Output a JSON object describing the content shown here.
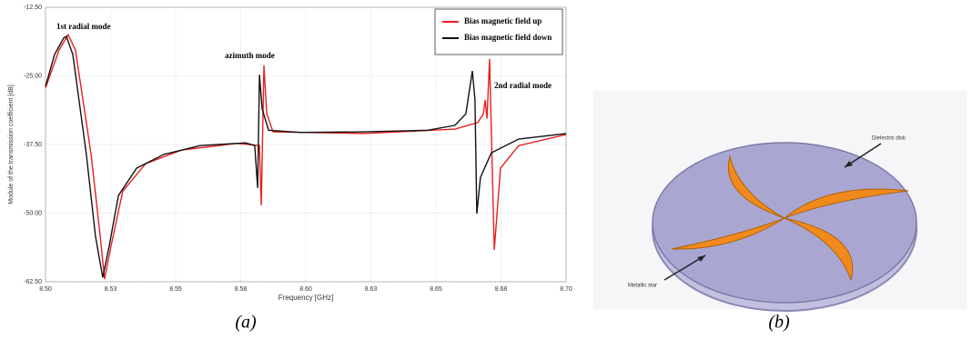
{
  "chart_data": {
    "type": "line",
    "x_label": "Frequency [GHz]",
    "y_label": "Module of the transmission coefficient [dB]",
    "annotations": [
      "1st radial mode",
      "azimuth mode",
      "2nd radial mode"
    ],
    "xlim": [
      8.5,
      8.7
    ],
    "xticks": [
      {
        "value": 8.5,
        "label": "8.50"
      },
      {
        "value": 8.525,
        "label": "8.53"
      },
      {
        "value": 8.55,
        "label": "8.55"
      },
      {
        "value": 8.575,
        "label": "8.58"
      },
      {
        "value": 8.6,
        "label": "8.60"
      },
      {
        "value": 8.625,
        "label": "8.63"
      },
      {
        "value": 8.65,
        "label": "8.65"
      },
      {
        "value": 8.675,
        "label": "8.68"
      },
      {
        "value": 8.7,
        "label": "8.70"
      }
    ],
    "ylim": [
      -62.5,
      -12.5
    ],
    "yticks": [
      {
        "value": -12.5,
        "label": "-12.50"
      },
      {
        "value": -25,
        "label": "-25.00"
      },
      {
        "value": -37.5,
        "label": "-37.50"
      },
      {
        "value": -50,
        "label": "-50.00"
      },
      {
        "value": -62.5,
        "label": "-62.50"
      }
    ],
    "grid": true,
    "legend": "upper right",
    "series": [
      {
        "name": "Bias magnetic field up",
        "color": "#e8201c",
        "x": [
          8.5,
          8.5052,
          8.5087,
          8.5115,
          8.5175,
          8.521,
          8.5227,
          8.5252,
          8.5297,
          8.5385,
          8.5524,
          8.5734,
          8.5822,
          8.5829,
          8.5839,
          8.585,
          8.5874,
          8.6224,
          8.6573,
          8.6661,
          8.6682,
          8.6689,
          8.6696,
          8.6706,
          8.6724,
          8.6748,
          8.6818,
          8.7
        ],
        "values": [
          -27.2,
          -20.3,
          -17.5,
          -20.3,
          -39.3,
          -54.2,
          -62.0,
          -55.9,
          -46.0,
          -41.0,
          -38.5,
          -37.3,
          -37.7,
          -48.6,
          -23.1,
          -31.9,
          -35.2,
          -35.5,
          -34.7,
          -33.5,
          -31.9,
          -29.4,
          -32.8,
          -21.9,
          -56.7,
          -41.8,
          -37.7,
          -35.7
        ]
      },
      {
        "name": "Bias magnetic field down",
        "color": "#111111",
        "x": [
          8.5,
          8.5035,
          8.507,
          8.508,
          8.5105,
          8.5157,
          8.5192,
          8.522,
          8.5245,
          8.528,
          8.535,
          8.5455,
          8.5594,
          8.5769,
          8.5804,
          8.5815,
          8.5822,
          8.5832,
          8.5857,
          8.5979,
          8.6224,
          8.6469,
          8.6573,
          8.6615,
          8.664,
          8.665,
          8.6657,
          8.6671,
          8.6713,
          8.6818,
          8.7
        ],
        "values": [
          -26.9,
          -21.1,
          -18.1,
          -17.8,
          -21.1,
          -39.3,
          -54.2,
          -61.7,
          -55.9,
          -46.8,
          -41.8,
          -39.3,
          -37.7,
          -37.2,
          -37.7,
          -45.4,
          -24.8,
          -31.0,
          -34.9,
          -35.3,
          -35.2,
          -34.9,
          -34.0,
          -31.9,
          -24.1,
          -29.4,
          -50.1,
          -43.5,
          -39.0,
          -36.5,
          -35.5
        ]
      }
    ]
  },
  "panel_b": {
    "labels": [
      "Dielectric disk",
      "Metallic star"
    ]
  },
  "captions": [
    "(a)",
    "(b)"
  ]
}
